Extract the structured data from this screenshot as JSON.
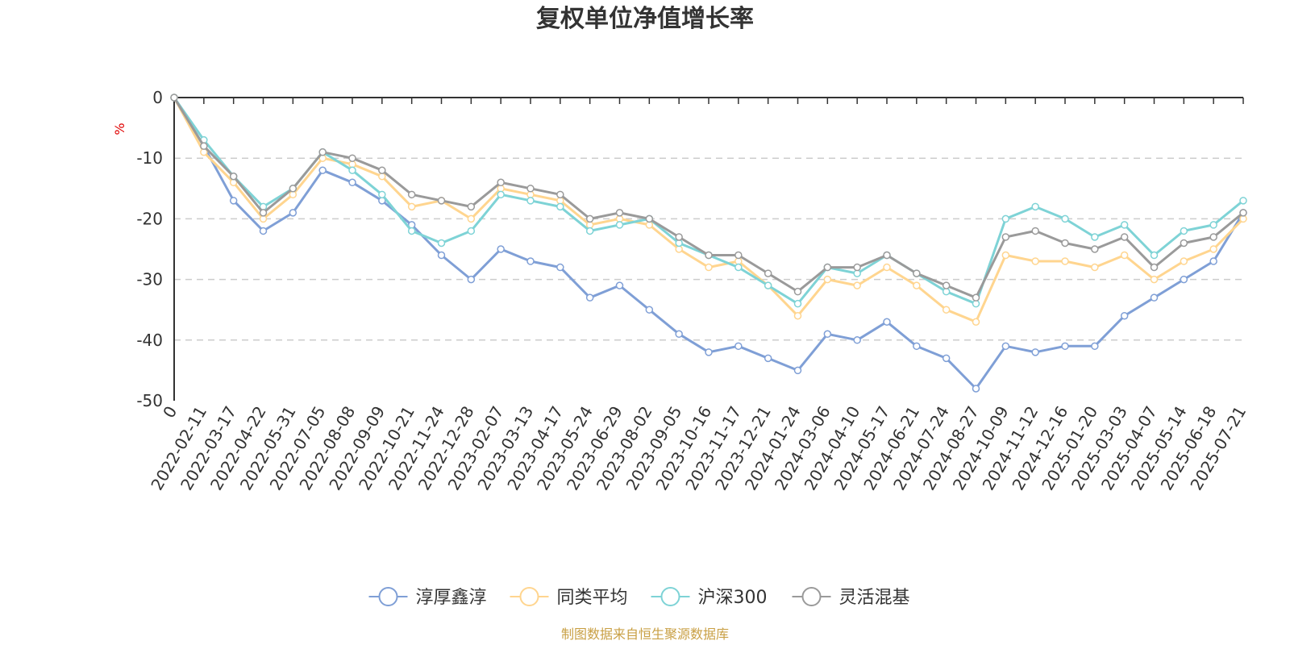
{
  "chart_data": {
    "type": "line",
    "title": "复权单位净值增长率",
    "ylabel": "%",
    "ylim": [
      -50,
      0
    ],
    "yticks": [
      0,
      -10,
      -20,
      -30,
      -40,
      -50
    ],
    "grid": "horizontal dashed",
    "legend_position": "bottom-center",
    "x": [
      "0",
      "2022-02-11",
      "2022-03-17",
      "2022-04-22",
      "2022-05-31",
      "2022-07-05",
      "2022-08-08",
      "2022-09-09",
      "2022-10-21",
      "2022-11-24",
      "2022-12-28",
      "2023-02-07",
      "2023-03-13",
      "2023-04-17",
      "2023-05-24",
      "2023-06-29",
      "2023-08-02",
      "2023-09-05",
      "2023-10-16",
      "2023-11-17",
      "2023-12-21",
      "2024-01-24",
      "2024-03-06",
      "2024-04-10",
      "2024-05-17",
      "2024-06-21",
      "2024-07-24",
      "2024-08-27",
      "2024-10-09",
      "2024-11-12",
      "2024-12-16",
      "2025-01-20",
      "2025-03-03",
      "2025-04-07",
      "2025-05-14",
      "2025-06-18",
      "2025-07-21"
    ],
    "series": [
      {
        "name": "淳厚鑫淳",
        "color": "#7f9fd6",
        "values": [
          0,
          -8,
          -17,
          -22,
          -19,
          -12,
          -14,
          -17,
          -21,
          -26,
          -30,
          -25,
          -27,
          -28,
          -33,
          -31,
          -35,
          -39,
          -42,
          -41,
          -43,
          -45,
          -39,
          -40,
          -37,
          -41,
          -43,
          -48,
          -41,
          -42,
          -41,
          -41,
          -36,
          -33,
          -30,
          -27,
          -19
        ]
      },
      {
        "name": "同类平均",
        "color": "#ffd58f",
        "values": [
          0,
          -9,
          -14,
          -20,
          -16,
          -10,
          -11,
          -13,
          -18,
          -17,
          -20,
          -15,
          -16,
          -17,
          -21,
          -20,
          -21,
          -25,
          -28,
          -27,
          -31,
          -36,
          -30,
          -31,
          -28,
          -31,
          -35,
          -37,
          -26,
          -27,
          -27,
          -28,
          -26,
          -30,
          -27,
          -25,
          -20
        ]
      },
      {
        "name": "沪深300",
        "color": "#7ed3d6",
        "values": [
          0,
          -7,
          -13,
          -18,
          -15,
          -9,
          -12,
          -16,
          -22,
          -24,
          -22,
          -16,
          -17,
          -18,
          -22,
          -21,
          -20,
          -24,
          -26,
          -28,
          -31,
          -34,
          -28,
          -29,
          -26,
          -29,
          -32,
          -34,
          -20,
          -18,
          -20,
          -23,
          -21,
          -26,
          -22,
          -21,
          -17
        ]
      },
      {
        "name": "灵活混基",
        "color": "#9a9a9a",
        "values": [
          0,
          -8,
          -13,
          -19,
          -15,
          -9,
          -10,
          -12,
          -16,
          -17,
          -18,
          -14,
          -15,
          -16,
          -20,
          -19,
          -20,
          -23,
          -26,
          -26,
          -29,
          -32,
          -28,
          -28,
          -26,
          -29,
          -31,
          -33,
          -23,
          -22,
          -24,
          -25,
          -23,
          -28,
          -24,
          -23,
          -19
        ]
      }
    ]
  },
  "source_text": "制图数据来自恒生聚源数据库"
}
